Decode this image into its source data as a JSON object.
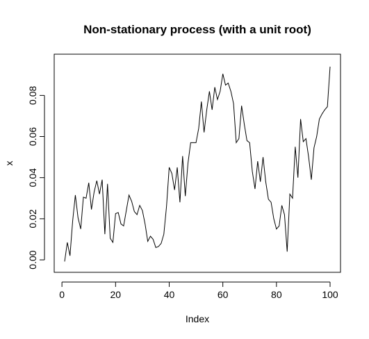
{
  "chart_data": {
    "type": "line",
    "title": "Non-stationary process (with a unit root)",
    "xlabel": "Index",
    "ylabel": "x",
    "xlim": [
      1,
      100
    ],
    "ylim": [
      -0.002,
      0.096
    ],
    "x_ticks": [
      0,
      20,
      40,
      60,
      80,
      100
    ],
    "x_tick_labels": [
      "0",
      "20",
      "40",
      "60",
      "80",
      "100"
    ],
    "y_ticks": [
      0.0,
      0.02,
      0.04,
      0.06,
      0.08
    ],
    "y_tick_labels": [
      "0.00",
      "0.02",
      "0.04",
      "0.06",
      "0.08"
    ],
    "grid": false,
    "series": [
      {
        "x": [
          1,
          2,
          3,
          4,
          5,
          6,
          7,
          8,
          9,
          10,
          11,
          12,
          13,
          14,
          15,
          16,
          17,
          18,
          19,
          20,
          21,
          22,
          23,
          24,
          25,
          26,
          27,
          28,
          29,
          30,
          31,
          32,
          33,
          34,
          35,
          36,
          37,
          38,
          39,
          40,
          41,
          42,
          43,
          44,
          45,
          46,
          47,
          48,
          49,
          50,
          51,
          52,
          53,
          54,
          55,
          56,
          57,
          58,
          59,
          60,
          61,
          62,
          63,
          64,
          65,
          66,
          67,
          68,
          69,
          70,
          71,
          72,
          73,
          74,
          75,
          76,
          77,
          78,
          79,
          80,
          81,
          82,
          83,
          84,
          85,
          86,
          87,
          88,
          89,
          90,
          91,
          92,
          93,
          94,
          95,
          96,
          97,
          98,
          99,
          100
        ],
        "values": [
          -0.0008,
          0.0085,
          0.002,
          0.019,
          0.0315,
          0.0205,
          0.015,
          0.0305,
          0.03,
          0.0375,
          0.0245,
          0.033,
          0.0385,
          0.032,
          0.039,
          0.0125,
          0.037,
          0.0105,
          0.0085,
          0.0225,
          0.023,
          0.0175,
          0.0165,
          0.024,
          0.0315,
          0.0285,
          0.0235,
          0.022,
          0.0265,
          0.024,
          0.0175,
          0.009,
          0.0115,
          0.01,
          0.006,
          0.0065,
          0.008,
          0.0125,
          0.026,
          0.045,
          0.042,
          0.034,
          0.045,
          0.028,
          0.0505,
          0.031,
          0.047,
          0.057,
          0.057,
          0.057,
          0.064,
          0.077,
          0.062,
          0.073,
          0.082,
          0.073,
          0.084,
          0.078,
          0.082,
          0.0905,
          0.085,
          0.086,
          0.082,
          0.076,
          0.057,
          0.059,
          0.075,
          0.066,
          0.058,
          0.057,
          0.043,
          0.0345,
          0.048,
          0.038,
          0.05,
          0.038,
          0.0295,
          0.028,
          0.02,
          0.015,
          0.0165,
          0.0265,
          0.022,
          0.004,
          0.032,
          0.03,
          0.055,
          0.04,
          0.0685,
          0.0575,
          0.059,
          0.05,
          0.039,
          0.0545,
          0.06,
          0.0685,
          0.071,
          0.073,
          0.0745,
          0.094
        ]
      }
    ]
  }
}
